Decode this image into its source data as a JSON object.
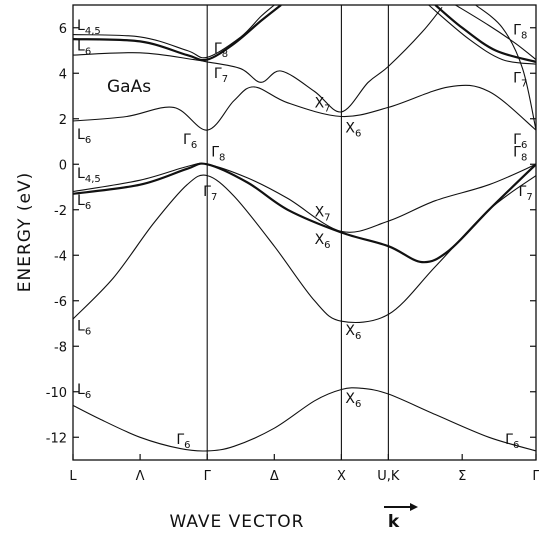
{
  "chart_data": {
    "type": "line",
    "title": "",
    "material": "GaAs",
    "xlabel": "WAVE VECTOR",
    "xlabel_vector": "k",
    "ylabel": "ENERGY (eV)",
    "ylim": [
      -13,
      7
    ],
    "y_ticks": [
      6,
      4,
      2,
      0,
      -2,
      -4,
      -6,
      -8,
      -10,
      -12
    ],
    "y_tick_labels": [
      "6",
      "4",
      "2",
      "0",
      "-2",
      "-4",
      "-6",
      "-8",
      "-10",
      "-12"
    ],
    "x_points": [
      {
        "label": "L",
        "x": 0
      },
      {
        "label": "Λ",
        "x": 0.5
      },
      {
        "label": "Γ",
        "x": 1
      },
      {
        "label": "Δ",
        "x": 1.5
      },
      {
        "label": "X",
        "x": 2
      },
      {
        "label": "U,K",
        "x": 2.35
      },
      {
        "label": "Σ",
        "x": 2.9
      },
      {
        "label": "Γ",
        "x": 3.45
      }
    ],
    "vertical_lines": [
      1,
      2,
      2.35
    ],
    "xlim": [
      0,
      3.45
    ],
    "bands": [
      {
        "points": [
          [
            0,
            -10.6
          ],
          [
            0.2,
            -11.2
          ],
          [
            0.5,
            -12.0
          ],
          [
            0.8,
            -12.5
          ],
          [
            1,
            -12.6
          ],
          [
            1.2,
            -12.4
          ],
          [
            1.5,
            -11.6
          ],
          [
            1.8,
            -10.4
          ],
          [
            2,
            -9.9
          ],
          [
            2.15,
            -9.85
          ],
          [
            2.35,
            -10.1
          ],
          [
            2.7,
            -11.0
          ],
          [
            3.1,
            -12.0
          ],
          [
            3.45,
            -12.6
          ]
        ]
      },
      {
        "points": [
          [
            0,
            -6.8
          ],
          [
            0.3,
            -5.0
          ],
          [
            0.6,
            -2.6
          ],
          [
            0.85,
            -0.9
          ],
          [
            1,
            -0.5
          ],
          [
            1.2,
            -1.4
          ],
          [
            1.5,
            -3.6
          ],
          [
            1.8,
            -6.0
          ],
          [
            2,
            -6.9
          ],
          [
            2.35,
            -6.6
          ],
          [
            2.7,
            -4.5
          ],
          [
            3.1,
            -2.0
          ],
          [
            3.45,
            -0.5
          ]
        ]
      },
      {
        "points": [
          [
            0,
            -1.3
          ],
          [
            0.5,
            -0.9
          ],
          [
            0.85,
            -0.2
          ],
          [
            1,
            0
          ],
          [
            1.3,
            -0.8
          ],
          [
            1.6,
            -2.0
          ],
          [
            2,
            -3.0
          ],
          [
            2.35,
            -3.6
          ],
          [
            2.6,
            -4.3
          ],
          [
            2.8,
            -3.8
          ],
          [
            3.1,
            -2.0
          ],
          [
            3.45,
            0
          ]
        ],
        "thick": true
      },
      {
        "points": [
          [
            0,
            -1.2
          ],
          [
            0.5,
            -0.7
          ],
          [
            0.85,
            -0.1
          ],
          [
            1,
            0
          ],
          [
            1.3,
            -0.6
          ],
          [
            1.6,
            -1.5
          ],
          [
            2,
            -2.95
          ],
          [
            2.35,
            -2.5
          ],
          [
            2.7,
            -1.6
          ],
          [
            3.1,
            -0.9
          ],
          [
            3.45,
            0
          ]
        ]
      },
      {
        "points": [
          [
            0,
            1.9
          ],
          [
            0.4,
            2.1
          ],
          [
            0.75,
            2.5
          ],
          [
            1,
            1.5
          ],
          [
            1.2,
            2.8
          ],
          [
            1.35,
            3.4
          ],
          [
            1.6,
            2.7
          ],
          [
            2,
            2.1
          ],
          [
            2.35,
            2.5
          ],
          [
            2.8,
            3.4
          ],
          [
            3.1,
            3.2
          ],
          [
            3.45,
            1.5
          ]
        ]
      },
      {
        "points": [
          [
            0,
            4.8
          ],
          [
            0.5,
            4.9
          ],
          [
            0.9,
            4.6
          ],
          [
            1,
            4.5
          ],
          [
            1.25,
            4.2
          ],
          [
            1.4,
            3.6
          ],
          [
            1.55,
            4.1
          ],
          [
            1.8,
            3.2
          ],
          [
            2,
            2.3
          ],
          [
            2.2,
            3.6
          ],
          [
            2.35,
            4.3
          ],
          [
            2.6,
            5.8
          ],
          [
            2.75,
            6.9
          ]
        ]
      },
      {
        "points": [
          [
            0,
            5.5
          ],
          [
            0.5,
            5.4
          ],
          [
            0.85,
            4.8
          ],
          [
            1,
            4.6
          ],
          [
            1.2,
            5.3
          ],
          [
            1.4,
            6.3
          ],
          [
            1.55,
            7.0
          ]
        ],
        "thick": true
      },
      {
        "points": [
          [
            0,
            5.7
          ],
          [
            0.5,
            5.6
          ],
          [
            0.85,
            5.0
          ],
          [
            1,
            4.7
          ],
          [
            1.25,
            5.6
          ],
          [
            1.4,
            6.5
          ],
          [
            1.5,
            7.0
          ]
        ]
      },
      {
        "points": [
          [
            2.7,
            7.0
          ],
          [
            2.9,
            6.0
          ],
          [
            3.15,
            5.0
          ],
          [
            3.45,
            4.5
          ]
        ],
        "thick": true
      },
      {
        "points": [
          [
            2.65,
            7.0
          ],
          [
            2.95,
            5.5
          ],
          [
            3.2,
            4.6
          ],
          [
            3.45,
            4.4
          ]
        ]
      },
      {
        "points": [
          [
            2.85,
            7.0
          ],
          [
            3.1,
            6.1
          ],
          [
            3.3,
            5.3
          ],
          [
            3.45,
            4.6
          ]
        ]
      },
      {
        "points": [
          [
            3.0,
            7.0
          ],
          [
            3.2,
            6.0
          ],
          [
            3.35,
            4.2
          ],
          [
            3.45,
            1.5
          ]
        ]
      }
    ],
    "annotations": [
      {
        "text": "L",
        "sub": "4,5",
        "x": 0.03,
        "y": 5.9
      },
      {
        "text": "L",
        "sub": "6",
        "x": 0.03,
        "y": 5.0
      },
      {
        "text": "Γ",
        "sub": "8",
        "x": 1.05,
        "y": 4.9
      },
      {
        "text": "Γ",
        "sub": "7",
        "x": 1.05,
        "y": 3.8
      },
      {
        "text": "L",
        "sub": "6",
        "x": 0.03,
        "y": 1.1
      },
      {
        "text": "Γ",
        "sub": "6",
        "x": 0.82,
        "y": 0.9
      },
      {
        "text": "X",
        "sub": "7",
        "x": 1.8,
        "y": 2.5
      },
      {
        "text": "X",
        "sub": "6",
        "x": 2.03,
        "y": 1.4
      },
      {
        "text": "Γ",
        "sub": "8",
        "x": 1.03,
        "y": 0.35
      },
      {
        "text": "L",
        "sub": "4,5",
        "x": 0.03,
        "y": -0.6
      },
      {
        "text": "L",
        "sub": "6",
        "x": 0.03,
        "y": -1.8
      },
      {
        "text": "Γ",
        "sub": "7",
        "x": 0.97,
        "y": -1.4
      },
      {
        "text": "X",
        "sub": "7",
        "x": 1.8,
        "y": -2.3
      },
      {
        "text": "X",
        "sub": "6",
        "x": 1.8,
        "y": -3.5
      },
      {
        "text": "L",
        "sub": "6",
        "x": 0.03,
        "y": -7.3
      },
      {
        "text": "X",
        "sub": "6",
        "x": 2.03,
        "y": -7.5
      },
      {
        "text": "L",
        "sub": "6",
        "x": 0.03,
        "y": -10.1
      },
      {
        "text": "X",
        "sub": "6",
        "x": 2.03,
        "y": -10.5
      },
      {
        "text": "Γ",
        "sub": "6",
        "x": 0.77,
        "y": -12.3
      },
      {
        "text": "Γ",
        "sub": "8",
        "x": 3.28,
        "y": 5.7
      },
      {
        "text": "Γ",
        "sub": "7",
        "x": 3.28,
        "y": 3.6
      },
      {
        "text": "Γ",
        "sub": "6",
        "x": 3.28,
        "y": 0.9
      },
      {
        "text": "Γ",
        "sub": "8",
        "x": 3.28,
        "y": 0.35
      },
      {
        "text": "Γ",
        "sub": "7",
        "x": 3.32,
        "y": -1.4
      },
      {
        "text": "Γ",
        "sub": "6",
        "x": 3.22,
        "y": -12.3
      }
    ]
  }
}
